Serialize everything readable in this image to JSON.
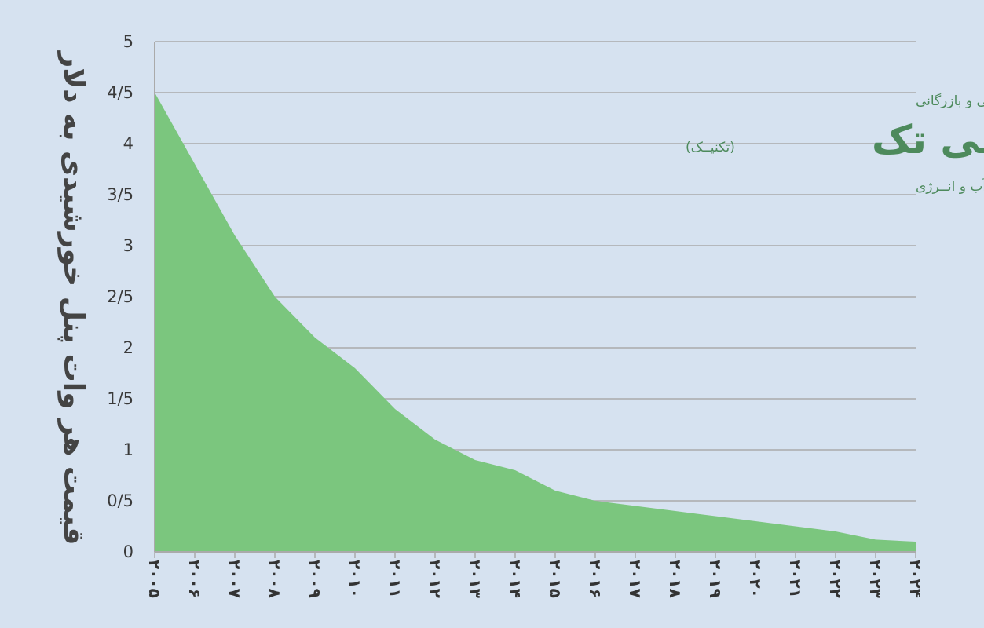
{
  "chart_data": {
    "type": "area",
    "title": "",
    "xlabel": "",
    "ylabel": "قیمت هر وات پنل خورشیدی به دلار",
    "categories": [
      "۲۰۰۵",
      "۲۰۰۶",
      "۲۰۰۷",
      "۲۰۰۸",
      "۲۰۰۹",
      "۲۰۱۰",
      "۲۰۱۱",
      "۲۰۱۲",
      "۲۰۱۳",
      "۲۰۱۴",
      "۲۰۱۵",
      "۲۰۱۶",
      "۲۰۱۷",
      "۲۰۱۸",
      "۲۰۱۹",
      "۲۰۲۰",
      "۲۰۲۱",
      "۲۰۲۲",
      "۲۰۲۳",
      "۲۰۲۴"
    ],
    "values": [
      4.5,
      3.8,
      3.1,
      2.5,
      2.1,
      1.8,
      1.4,
      1.1,
      0.9,
      0.8,
      0.6,
      0.5,
      0.45,
      0.4,
      0.35,
      0.3,
      0.25,
      0.2,
      0.12,
      0.1
    ],
    "ylim": [
      0,
      5
    ],
    "yticks": [
      0,
      0.5,
      1,
      1.5,
      2,
      2.5,
      3,
      3.5,
      4,
      4.5,
      5
    ],
    "ytick_labels": [
      "0",
      "0/5",
      "1",
      "1/5",
      "2",
      "2/5",
      "3",
      "3/5",
      "4",
      "4/5",
      "5"
    ],
    "grid": true,
    "legend": "none",
    "colors": {
      "area": "#7bc67e",
      "grid": "#aaaaaa",
      "axis": "#aaaaaa",
      "background": "#d6e2f0"
    }
  },
  "logo": {
    "tagline": "گروه خدمات مهندسی و بازرگانی",
    "name": "ونــی تک",
    "sub": "(تکنیــک)",
    "description": "تکنیــک هـَای نـوآورانه دَر صــنعت آب و انــرژی",
    "color": "#4d8a5c"
  }
}
